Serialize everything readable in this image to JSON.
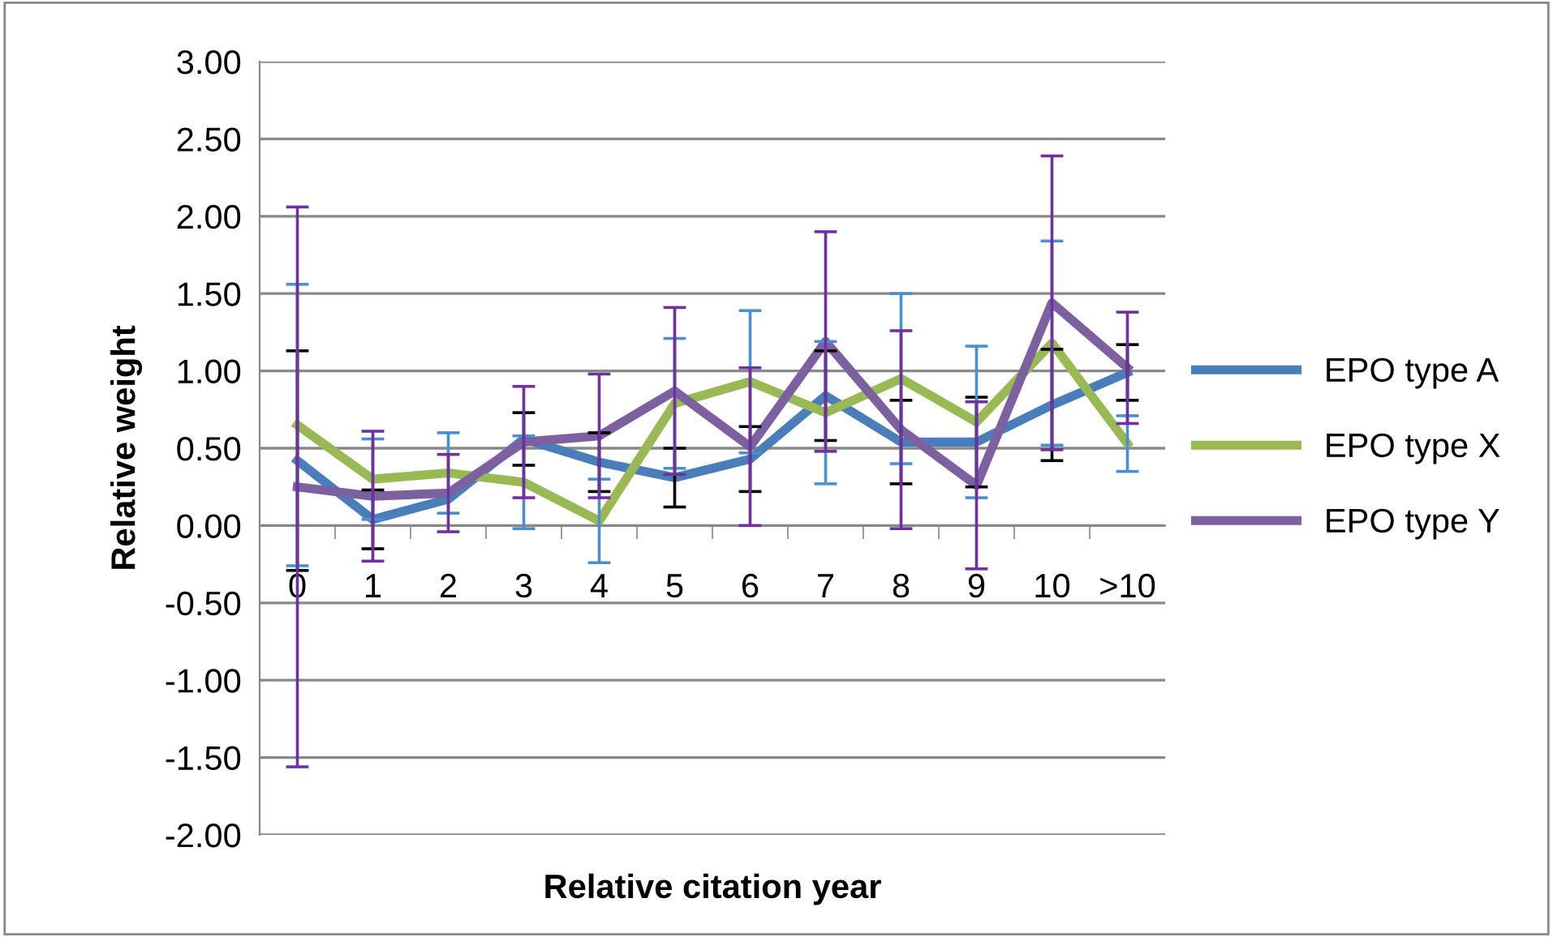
{
  "chart_data": {
    "type": "line",
    "xlabel": "Relative citation year",
    "ylabel": "Relative weight",
    "categories": [
      "0",
      "1",
      "2",
      "3",
      "4",
      "5",
      "6",
      "7",
      "8",
      "9",
      "10",
      ">10"
    ],
    "ylim": [
      -2,
      3
    ],
    "yticks": [
      {
        "value": -2,
        "label": "-2.00"
      },
      {
        "value": -1.5,
        "label": "-1.50"
      },
      {
        "value": -1,
        "label": "-1.00"
      },
      {
        "value": -0.5,
        "label": "-0.50"
      },
      {
        "value": 0,
        "label": "0.00"
      },
      {
        "value": 0.5,
        "label": "0.50"
      },
      {
        "value": 1,
        "label": "1.00"
      },
      {
        "value": 1.5,
        "label": "1.50"
      },
      {
        "value": 2,
        "label": "2.00"
      },
      {
        "value": 2.5,
        "label": "2.50"
      },
      {
        "value": 3,
        "label": "3.00"
      }
    ],
    "grid": "y",
    "legend": "right",
    "marker": "none",
    "line_style": "solid",
    "series": [
      {
        "name": "EPO type A",
        "color": "#4a7ebb",
        "values": [
          0.42,
          0.04,
          0.17,
          0.56,
          0.41,
          0.31,
          0.43,
          0.84,
          0.54,
          0.54,
          0.78,
          0.99
        ],
        "errors": [
          0.71,
          0.19,
          null,
          0.17,
          0.19,
          0.19,
          0.21,
          0.29,
          0.27,
          0.29,
          0.36,
          0.18
        ]
      },
      {
        "name": "EPO type X",
        "color": "#98b954",
        "values": [
          0.65,
          0.3,
          0.34,
          0.28,
          0.03,
          0.79,
          0.93,
          0.73,
          0.95,
          0.67,
          1.18,
          0.53
        ],
        "errors": [
          0.91,
          0.26,
          0.26,
          0.3,
          0.27,
          0.42,
          0.46,
          0.46,
          0.55,
          0.49,
          0.66,
          0.18
        ]
      },
      {
        "name": "EPO type Y",
        "color": "#7d60a0",
        "values": [
          0.25,
          0.19,
          0.21,
          0.54,
          0.58,
          0.87,
          0.51,
          1.19,
          0.62,
          0.26,
          1.44,
          1.02
        ],
        "errors": [
          1.81,
          0.42,
          0.25,
          0.36,
          0.4,
          0.54,
          0.51,
          0.71,
          0.64,
          0.54,
          0.95,
          0.36
        ]
      }
    ]
  }
}
